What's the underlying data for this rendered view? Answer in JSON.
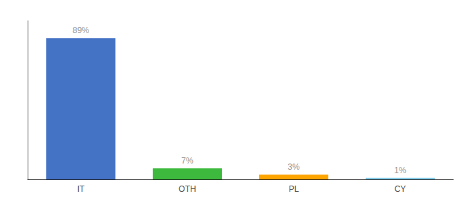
{
  "chart_data": {
    "type": "bar",
    "categories": [
      "IT",
      "OTH",
      "PL",
      "CY"
    ],
    "values": [
      89,
      7,
      3,
      1
    ],
    "value_labels": [
      "89%",
      "7%",
      "3%",
      "1%"
    ],
    "colors": [
      "#4472c4",
      "#3dba3d",
      "#ffa500",
      "#87ceeb"
    ],
    "ylim": [
      0,
      100
    ],
    "data_labels": true,
    "tick_labels": "x",
    "grid": false
  }
}
